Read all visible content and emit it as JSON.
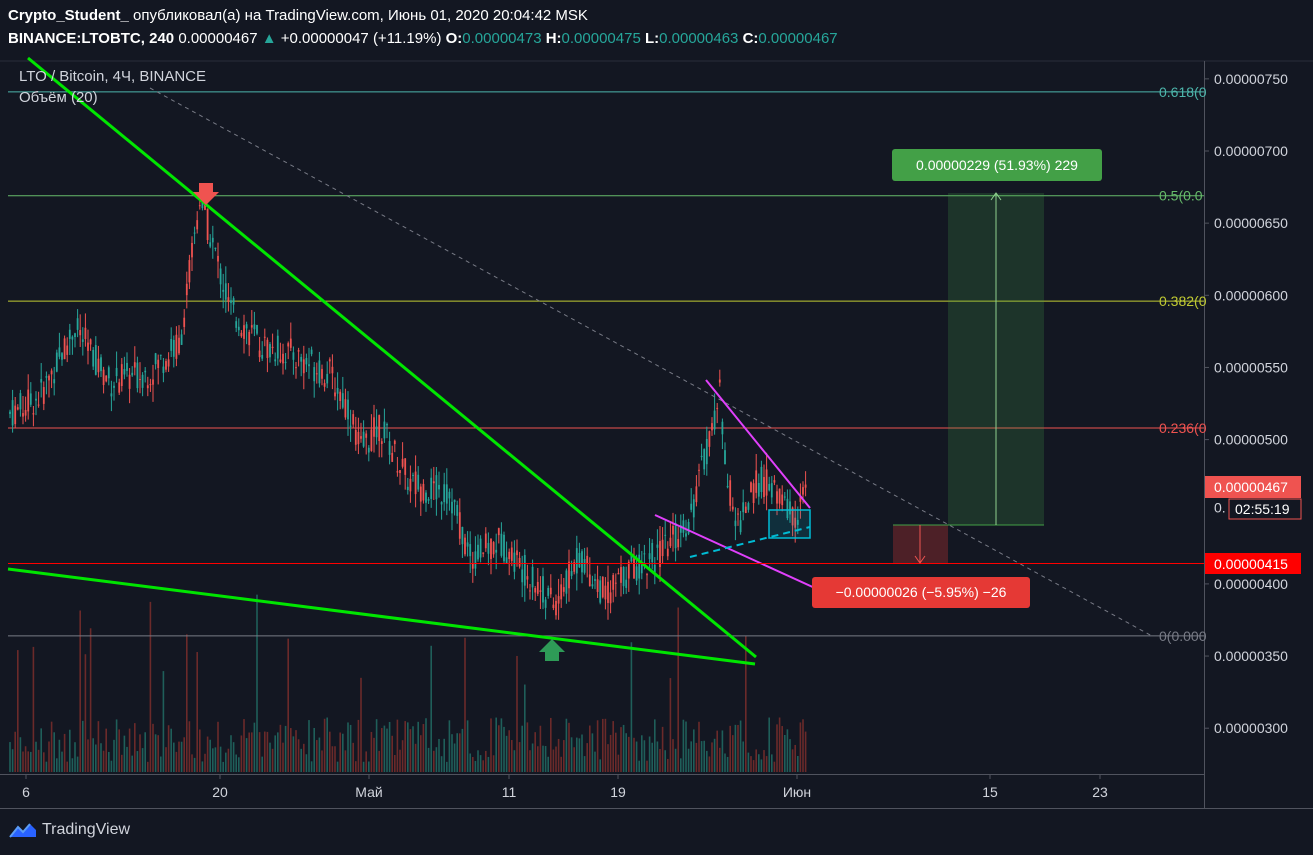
{
  "header": {
    "author": "Crypto_Student_",
    "published_text": "опубликовал(а) на TradingView.com, Июнь 01, 2020 20:04:42 MSK",
    "symbol": "BINANCE:LTOBTC, 240",
    "price": "0.00000467",
    "change": "+0.00000047 (+11.19%)",
    "o_label": "O:",
    "o_value": "0.00000473",
    "h_label": "H:",
    "h_value": "0.00000475",
    "l_label": "L:",
    "l_value": "0.00000463",
    "c_label": "C:",
    "c_value": "0.00000467"
  },
  "legend": {
    "title": "LTO / Bitcoin, 4Ч, BINANCE",
    "volume": "Объём (20)"
  },
  "price_axis": {
    "ticks": [
      "0.00000750",
      "0.00000700",
      "0.00000650",
      "0.00000600",
      "0.00000550",
      "0.00000500",
      "0.00000400",
      "0.00000350",
      "0.00000300"
    ],
    "tick_values": [
      750,
      700,
      650,
      600,
      550,
      500,
      400,
      350,
      300
    ],
    "current_price": "0.00000467",
    "countdown": "02:55:19",
    "partial_tick": "0.",
    "stop_price": "0.00000415"
  },
  "time_axis": {
    "labels": [
      "6",
      "20",
      "Май",
      "11",
      "19",
      "Июн",
      "15",
      "23"
    ]
  },
  "fib_levels": [
    {
      "label": "0.618(0",
      "value": 741,
      "color": "#4db6ac"
    },
    {
      "label": "0.5(0.0",
      "value": 669,
      "color": "#66bb6a"
    },
    {
      "label": "0.382(0",
      "value": 596,
      "color": "#c0ca33"
    },
    {
      "label": "0.236(0",
      "value": 508,
      "color": "#ef5350"
    },
    {
      "label": "0(0.000",
      "value": 364,
      "color": "#787b86"
    }
  ],
  "position": {
    "target_label": "0.00000229 (51.93%) 229",
    "stop_label": "−0.00000026 (−5.95%) −26",
    "target_color": "#43a047",
    "stop_color": "#e53935"
  },
  "branding": {
    "name": "TradingView",
    "icon": "tradingview-logo-icon"
  },
  "colors": {
    "background": "#131722",
    "up": "#26a69a",
    "down": "#ef5350",
    "trend": "#00e600",
    "wedge": "#e040fb",
    "dash": "#00bcd4"
  }
}
